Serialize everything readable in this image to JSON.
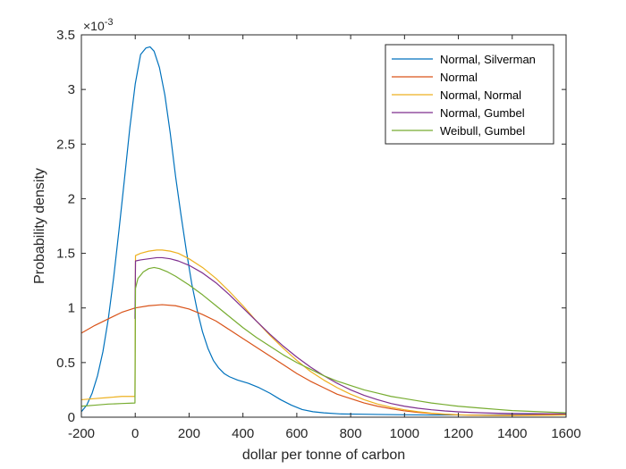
{
  "chart_data": {
    "type": "line",
    "xlabel": "dollar per tonne of carbon",
    "ylabel": "Probability density",
    "xlim": [
      -200,
      1600
    ],
    "ylim": [
      0,
      0.0035
    ],
    "xticks": [
      -200,
      0,
      200,
      400,
      600,
      800,
      1000,
      1200,
      1400,
      1600
    ],
    "xtick_labels": [
      "-200",
      "0",
      "200",
      "400",
      "600",
      "800",
      "1000",
      "1200",
      "1400",
      "1600"
    ],
    "yticks": [
      0,
      0.0005,
      0.001,
      0.0015,
      0.002,
      0.0025,
      0.003,
      0.0035
    ],
    "ytick_labels": [
      "0",
      "0.5",
      "1",
      "1.5",
      "2",
      "2.5",
      "3",
      "3.5"
    ],
    "y_exponent_base": "×10",
    "y_exponent_power": "-3",
    "grid": false,
    "legend_position": "top-right",
    "series": [
      {
        "name": "Normal, Silverman",
        "color": "#0072BD",
        "x": [
          -200,
          -180,
          -160,
          -140,
          -120,
          -100,
          -80,
          -60,
          -40,
          -20,
          0,
          20,
          40,
          55,
          70,
          90,
          110,
          130,
          150,
          170,
          190,
          210,
          230,
          250,
          270,
          290,
          310,
          330,
          350,
          380,
          420,
          460,
          500,
          540,
          580,
          620,
          660,
          700,
          760,
          820,
          900,
          1000,
          1100,
          1200,
          1300,
          1400,
          1500,
          1600
        ],
        "y": [
          5e-05,
          0.00011,
          0.00022,
          0.00038,
          0.0006,
          0.0009,
          0.00128,
          0.00172,
          0.00218,
          0.00265,
          0.00305,
          0.00332,
          0.00338,
          0.00339,
          0.00335,
          0.0032,
          0.00295,
          0.0026,
          0.0022,
          0.00185,
          0.00152,
          0.00122,
          0.00098,
          0.00078,
          0.00063,
          0.00052,
          0.00045,
          0.0004,
          0.00037,
          0.00034,
          0.00031,
          0.00027,
          0.00022,
          0.00016,
          0.00011,
          7e-05,
          5e-05,
          4e-05,
          3e-05,
          2.8e-05,
          2.5e-05,
          2.2e-05,
          2e-05,
          2e-05,
          2e-05,
          2.2e-05,
          2.5e-05,
          3e-05
        ]
      },
      {
        "name": "Normal",
        "color": "#D95319",
        "x": [
          -200,
          -150,
          -100,
          -50,
          0,
          50,
          100,
          150,
          200,
          250,
          300,
          350,
          400,
          450,
          500,
          550,
          600,
          650,
          700,
          750,
          800,
          850,
          900,
          950,
          1000,
          1050,
          1100,
          1150,
          1200,
          1250,
          1300,
          1350,
          1400,
          1450,
          1500,
          1550,
          1600
        ],
        "y": [
          0.00077,
          0.00084,
          0.0009,
          0.00096,
          0.001,
          0.00102,
          0.00103,
          0.00102,
          0.00099,
          0.00094,
          0.00088,
          0.0008,
          0.00072,
          0.00064,
          0.00056,
          0.00048,
          0.0004,
          0.00033,
          0.00027,
          0.00021,
          0.00017,
          0.00013,
          0.0001,
          7.7e-05,
          5.8e-05,
          4.4e-05,
          3.3e-05,
          2.6e-05,
          2.1e-05,
          1.9e-05,
          1.8e-05,
          1.8e-05,
          1.9e-05,
          2e-05,
          2.2e-05,
          2.4e-05,
          2.6e-05
        ]
      },
      {
        "name": "Normal, Normal",
        "color": "#EDB120",
        "x": [
          -200,
          -150,
          -100,
          -50,
          -1,
          1,
          20,
          50,
          80,
          100,
          130,
          160,
          200,
          250,
          300,
          350,
          400,
          450,
          500,
          550,
          600,
          650,
          700,
          750,
          800,
          850,
          900,
          950,
          1000,
          1050,
          1100,
          1150,
          1200,
          1250,
          1300,
          1350,
          1400,
          1450,
          1500,
          1550,
          1600
        ],
        "y": [
          0.00016,
          0.00017,
          0.00018,
          0.00019,
          0.00019,
          0.00148,
          0.0015,
          0.00152,
          0.00153,
          0.00153,
          0.00152,
          0.0015,
          0.00145,
          0.00137,
          0.00127,
          0.00115,
          0.00102,
          0.00088,
          0.00075,
          0.00063,
          0.00052,
          0.00042,
          0.00034,
          0.00027,
          0.00021,
          0.00016,
          0.00012,
          9e-05,
          6.8e-05,
          5e-05,
          3.7e-05,
          2.8e-05,
          2.2e-05,
          1.8e-05,
          1.6e-05,
          1.5e-05,
          1.5e-05,
          1.6e-05,
          1.7e-05,
          1.8e-05,
          2e-05
        ]
      },
      {
        "name": "Normal, Gumbel",
        "color": "#7E2F8E",
        "x": [
          -1,
          1,
          20,
          50,
          80,
          100,
          130,
          160,
          200,
          250,
          300,
          350,
          400,
          450,
          500,
          550,
          600,
          650,
          700,
          750,
          800,
          850,
          900,
          950,
          1000,
          1050,
          1100,
          1150,
          1200,
          1250,
          1300,
          1350,
          1400,
          1450,
          1500,
          1550,
          1600
        ],
        "y": [
          0.0009,
          0.00143,
          0.00144,
          0.00145,
          0.00146,
          0.00146,
          0.00145,
          0.00143,
          0.00139,
          0.00132,
          0.00123,
          0.00112,
          0.001,
          0.00088,
          0.00076,
          0.00065,
          0.00055,
          0.00046,
          0.00038,
          0.00031,
          0.00025,
          0.0002,
          0.00016,
          0.000125,
          0.0001,
          8.2e-05,
          6.8e-05,
          5.7e-05,
          4.9e-05,
          4.3e-05,
          3.9e-05,
          3.6e-05,
          3.4e-05,
          3.3e-05,
          3.2e-05,
          3.1e-05,
          3e-05
        ]
      },
      {
        "name": "Weibull, Gumbel",
        "color": "#77AC30",
        "x": [
          -200,
          -150,
          -100,
          -50,
          -1,
          1,
          10,
          30,
          50,
          70,
          90,
          120,
          150,
          200,
          250,
          300,
          350,
          400,
          450,
          500,
          550,
          600,
          650,
          700,
          750,
          800,
          850,
          900,
          950,
          1000,
          1050,
          1100,
          1150,
          1200,
          1250,
          1300,
          1350,
          1400,
          1450,
          1500,
          1550,
          1600
        ],
        "y": [
          0.0001,
          0.00011,
          0.00012,
          0.000125,
          0.00013,
          0.00118,
          0.00127,
          0.00133,
          0.00136,
          0.00137,
          0.00136,
          0.00133,
          0.00129,
          0.00121,
          0.00112,
          0.00102,
          0.00092,
          0.00082,
          0.00073,
          0.00065,
          0.00057,
          0.0005,
          0.00044,
          0.00038,
          0.00033,
          0.00029,
          0.00025,
          0.00022,
          0.00019,
          0.00017,
          0.00015,
          0.00013,
          0.000115,
          0.0001,
          9e-05,
          8e-05,
          7e-05,
          6e-05,
          5.5e-05,
          5e-05,
          4.5e-05,
          4e-05
        ]
      }
    ]
  }
}
